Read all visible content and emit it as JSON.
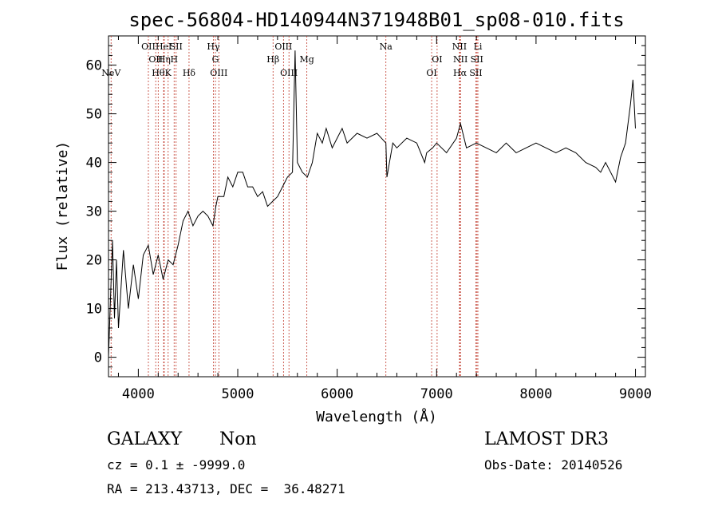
{
  "chart_data": {
    "type": "line",
    "title": "spec-56804-HD140944N371948B01_sp08-010.fits",
    "xlabel": "Wavelength (Å)",
    "ylabel": "Flux (relative)",
    "xlim": [
      3700,
      9100
    ],
    "ylim": [
      -4,
      66
    ],
    "xticks": [
      4000,
      5000,
      6000,
      7000,
      8000,
      9000
    ],
    "yticks": [
      0,
      10,
      20,
      30,
      40,
      50,
      60
    ],
    "grid": false,
    "series": [
      {
        "x": [
          3700,
          3720,
          3740,
          3760,
          3780,
          3800,
          3850,
          3900,
          3950,
          4000,
          4050,
          4100,
          4150,
          4200,
          4250,
          4300,
          4350,
          4400,
          4450,
          4500,
          4550,
          4600,
          4650,
          4700,
          4750,
          4780,
          4800,
          4860,
          4900,
          4950,
          5000,
          5050,
          5100,
          5150,
          5200,
          5250,
          5300,
          5350,
          5400,
          5450,
          5500,
          5550,
          5577,
          5600,
          5650,
          5700,
          5750,
          5800,
          5850,
          5890,
          5950,
          6000,
          6050,
          6100,
          6200,
          6300,
          6400,
          6490,
          6500,
          6560,
          6600,
          6700,
          6800,
          6880,
          6900,
          6960,
          7000,
          7100,
          7200,
          7240,
          7300,
          7400,
          7500,
          7600,
          7700,
          7800,
          7900,
          8000,
          8100,
          8200,
          8300,
          8400,
          8500,
          8600,
          8650,
          8700,
          8750,
          8800,
          8850,
          8900,
          8950,
          8975,
          9000
        ],
        "y": [
          0,
          12,
          24,
          8,
          20,
          6,
          22,
          10,
          19,
          12,
          21,
          23,
          17,
          21,
          16,
          20,
          19,
          23,
          28,
          30,
          27,
          29,
          30,
          29,
          27,
          31,
          33,
          33,
          37,
          35,
          38,
          38,
          35,
          35,
          33,
          34,
          31,
          32,
          33,
          35,
          37,
          38,
          63,
          40,
          38,
          37,
          40,
          46,
          44,
          47,
          43,
          45,
          47,
          44,
          46,
          45,
          46,
          44,
          37,
          44,
          43,
          45,
          44,
          40,
          42,
          43,
          44,
          42,
          45,
          48,
          43,
          44,
          43,
          42,
          44,
          42,
          43,
          44,
          43,
          42,
          43,
          42,
          40,
          39,
          38,
          40,
          38,
          36,
          41,
          44,
          52,
          57,
          47
        ]
      }
    ],
    "lines": [
      {
        "label": "NeV",
        "x": 3726,
        "row": 3
      },
      {
        "label": "OII",
        "x": 4101,
        "row": 1
      },
      {
        "label": "OII",
        "x": 4175,
        "row": 2
      },
      {
        "label": "Hθ",
        "x": 4200,
        "row": 3
      },
      {
        "label": "HeI",
        "x": 4255,
        "row": 1
      },
      {
        "label": "Hη",
        "x": 4260,
        "row": 2
      },
      {
        "label": "K",
        "x": 4300,
        "row": 3
      },
      {
        "label": "H",
        "x": 4360,
        "row": 2
      },
      {
        "label": "SII",
        "x": 4380,
        "row": 1
      },
      {
        "label": "Hδ",
        "x": 4510,
        "row": 3
      },
      {
        "label": "Hγ",
        "x": 4755,
        "row": 1
      },
      {
        "label": "G",
        "x": 4775,
        "row": 2
      },
      {
        "label": "OIII",
        "x": 4810,
        "row": 3
      },
      {
        "label": "Hβ",
        "x": 5355,
        "row": 2
      },
      {
        "label": "OIII",
        "x": 5460,
        "row": 1
      },
      {
        "label": "OIII",
        "x": 5515,
        "row": 3
      },
      {
        "label": "Mg",
        "x": 5695,
        "row": 2
      },
      {
        "label": "Na",
        "x": 6490,
        "row": 1
      },
      {
        "label": "OI",
        "x": 6950,
        "row": 3
      },
      {
        "label": "OI",
        "x": 7005,
        "row": 2
      },
      {
        "label": "NII",
        "x": 7230,
        "row": 1
      },
      {
        "label": "Hα",
        "x": 7235,
        "row": 3
      },
      {
        "label": "NII",
        "x": 7240,
        "row": 2
      },
      {
        "label": "SII",
        "x": 7395,
        "row": 3
      },
      {
        "label": "SII",
        "x": 7405,
        "row": 2
      },
      {
        "label": "Li",
        "x": 7415,
        "row": 1
      }
    ]
  },
  "info": {
    "class": "GALAXY",
    "subclass": "Non",
    "survey": "LAMOST DR3",
    "cz": "cz = 0.1 ± -9999.0",
    "obs_date": "Obs-Date: 20140526",
    "radec": "RA = 213.43713, DEC =  36.48271"
  },
  "colors": {
    "spectrum": "#000000",
    "line_marker": "#c0392b"
  }
}
